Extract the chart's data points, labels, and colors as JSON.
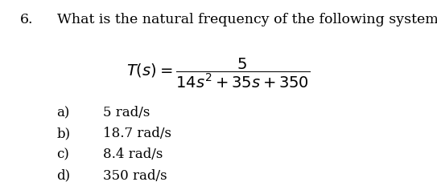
{
  "question_number": "6.",
  "question_text": "What is the natural frequency of the following system?",
  "formula": "$T(s) = \\dfrac{5}{14s^2 + 35s + 350}$",
  "options": [
    {
      "label": "a)",
      "text": "5 rad/s"
    },
    {
      "label": "b)",
      "text": "18.7 rad/s"
    },
    {
      "label": "c)",
      "text": "8.4 rad/s"
    },
    {
      "label": "d)",
      "text": "350 rad/s"
    }
  ],
  "bg_color": "#ffffff",
  "text_color": "#000000",
  "font_size_question": 12.5,
  "font_size_formula": 14,
  "font_size_options": 12
}
